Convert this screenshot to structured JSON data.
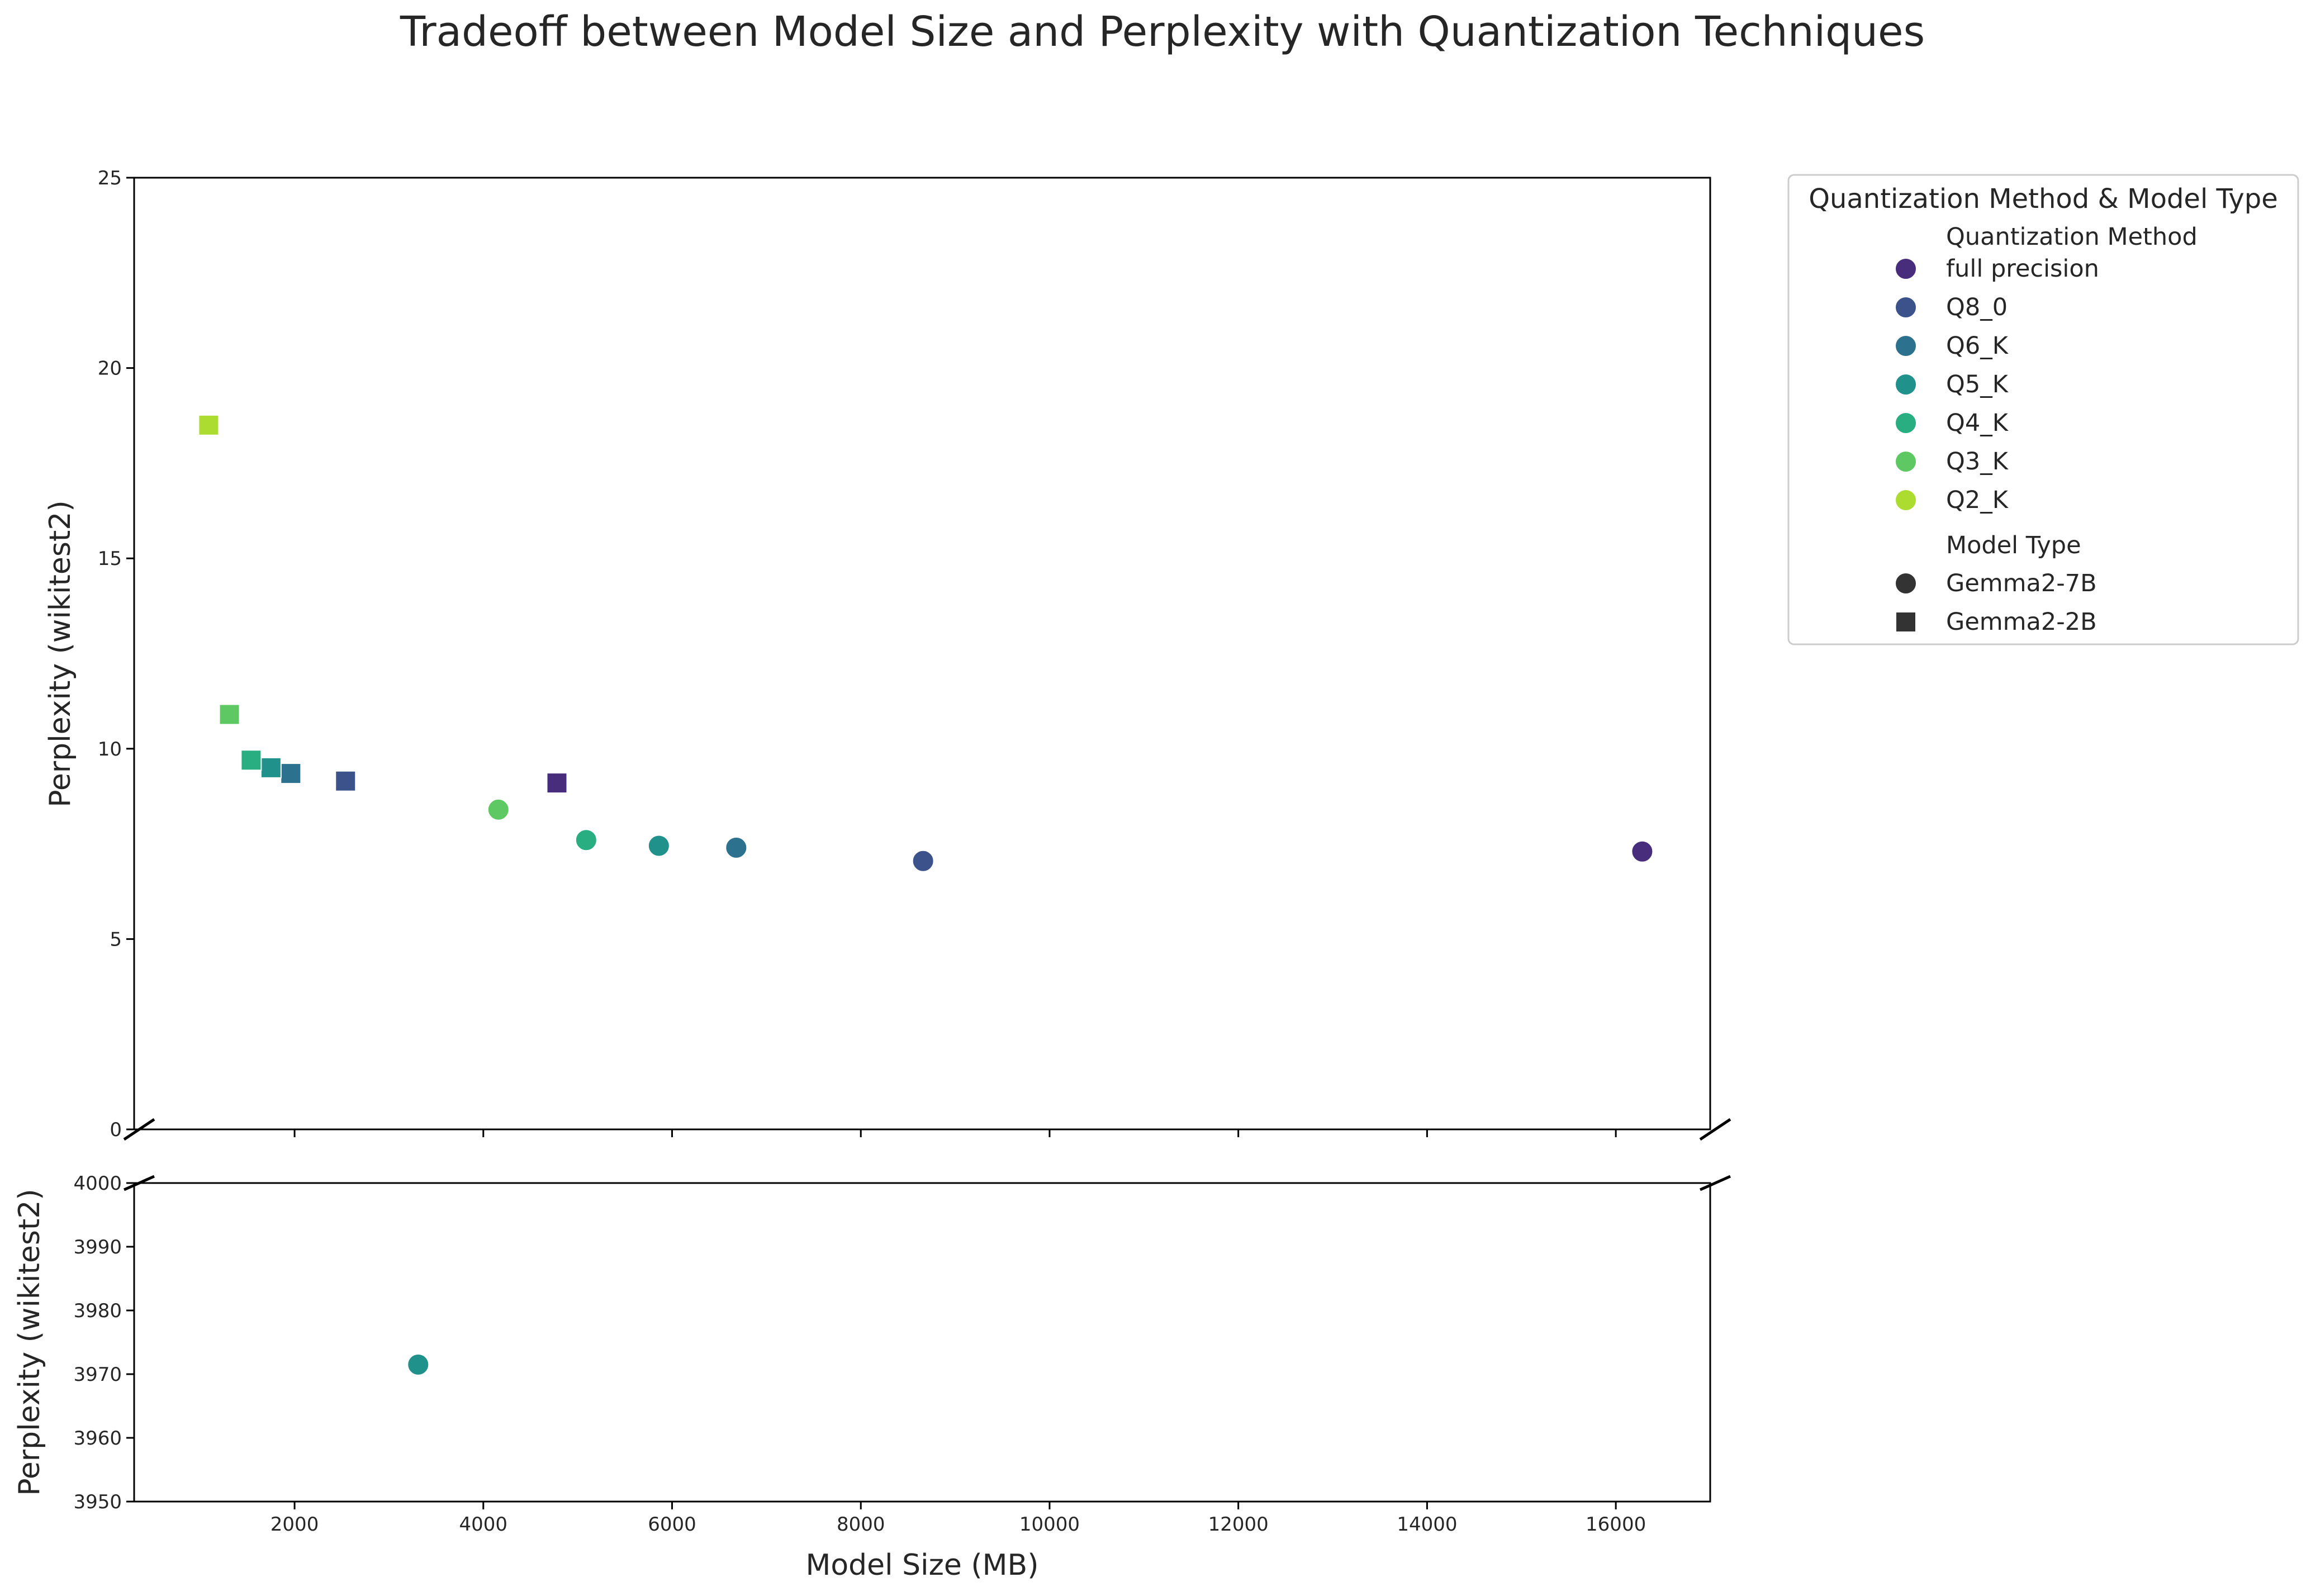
{
  "chart_data": {
    "type": "scatter",
    "title": "Tradeoff between Model Size and Perplexity with Quantization Techniques",
    "xlabel": "Model Size (MB)",
    "ylabel": "Perplexity (wikitest2)",
    "xlim": [
      300,
      17000
    ],
    "x_ticks": [
      2000,
      4000,
      6000,
      8000,
      10000,
      12000,
      14000,
      16000
    ],
    "upper_panel": {
      "ylim": [
        0,
        25
      ],
      "y_ticks": [
        0,
        5,
        10,
        15,
        20,
        25
      ]
    },
    "lower_panel": {
      "ylim": [
        3950,
        4000
      ],
      "y_ticks": [
        3950,
        3960,
        3970,
        3980,
        3990,
        4000
      ]
    },
    "broken_y_axis": true,
    "grid": false,
    "legend": {
      "title": "Quantization Method & Model Type",
      "placement": "outside-right",
      "method_header": "Quantization Method",
      "model_header": "Model Type",
      "methods": [
        {
          "name": "full precision",
          "color": "#472d7b"
        },
        {
          "name": "Q8_0",
          "color": "#3b528b"
        },
        {
          "name": "Q6_K",
          "color": "#2c728e"
        },
        {
          "name": "Q5_K",
          "color": "#21918c"
        },
        {
          "name": "Q4_K",
          "color": "#28ae80"
        },
        {
          "name": "Q3_K",
          "color": "#5ec962"
        },
        {
          "name": "Q2_K",
          "color": "#addc30"
        }
      ],
      "models": [
        {
          "name": "Gemma2-7B",
          "marker": "circle"
        },
        {
          "name": "Gemma2-2B",
          "marker": "square"
        }
      ]
    },
    "points": [
      {
        "model": "Gemma2-7B",
        "method": "full precision",
        "x": 16280,
        "y": 7.3
      },
      {
        "model": "Gemma2-7B",
        "method": "Q8_0",
        "x": 8660,
        "y": 7.05
      },
      {
        "model": "Gemma2-7B",
        "method": "Q6_K",
        "x": 6680,
        "y": 7.4
      },
      {
        "model": "Gemma2-7B",
        "method": "Q5_K",
        "x": 5860,
        "y": 7.45
      },
      {
        "model": "Gemma2-7B",
        "method": "Q4_K",
        "x": 5090,
        "y": 7.6
      },
      {
        "model": "Gemma2-7B",
        "method": "Q3_K",
        "x": 4160,
        "y": 8.4
      },
      {
        "model": "Gemma2-7B",
        "method": "Q5_K",
        "x": 3310,
        "y": 3971.5
      },
      {
        "model": "Gemma2-2B",
        "method": "full precision",
        "x": 4780,
        "y": 9.1
      },
      {
        "model": "Gemma2-2B",
        "method": "Q8_0",
        "x": 2540,
        "y": 9.15
      },
      {
        "model": "Gemma2-2B",
        "method": "Q6_K",
        "x": 1960,
        "y": 9.35
      },
      {
        "model": "Gemma2-2B",
        "method": "Q5_K",
        "x": 1750,
        "y": 9.5
      },
      {
        "model": "Gemma2-2B",
        "method": "Q4_K",
        "x": 1540,
        "y": 9.7
      },
      {
        "model": "Gemma2-2B",
        "method": "Q3_K",
        "x": 1310,
        "y": 10.9
      },
      {
        "model": "Gemma2-2B",
        "method": "Q2_K",
        "x": 1090,
        "y": 18.5
      }
    ]
  }
}
